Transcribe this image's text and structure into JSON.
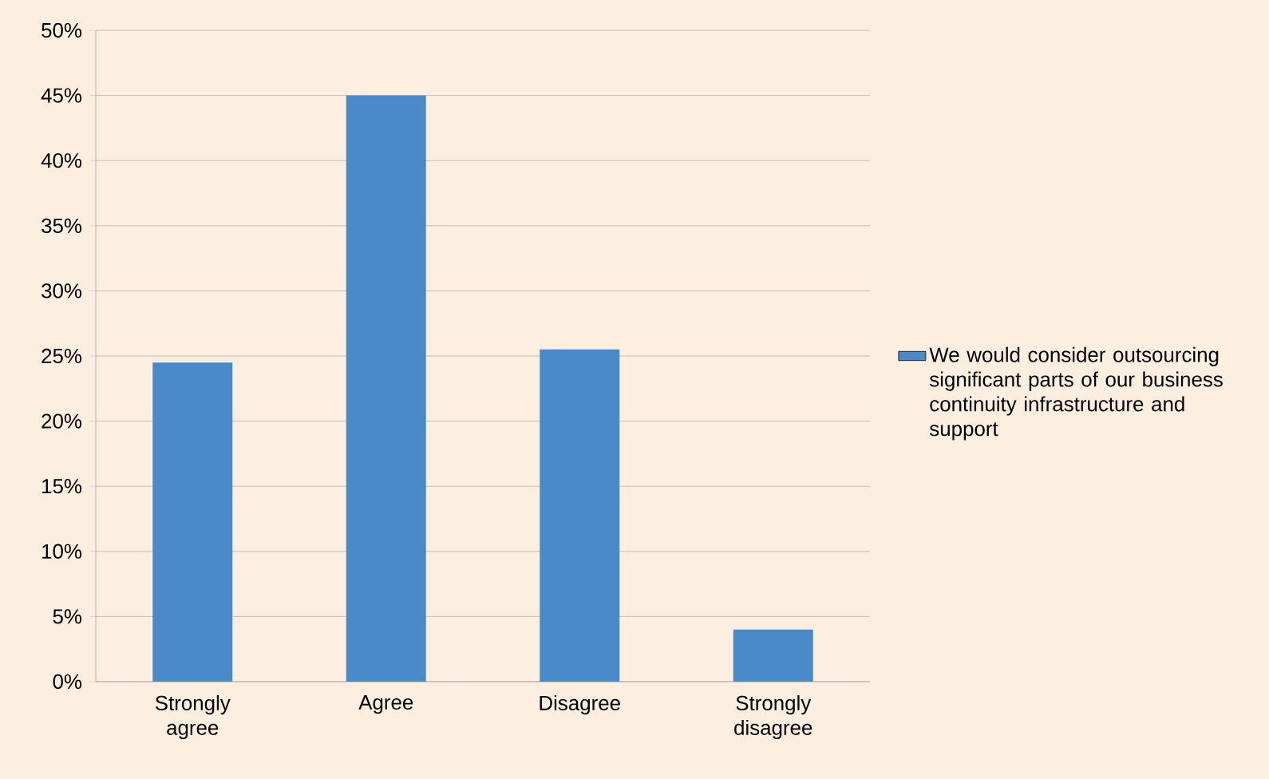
{
  "chart_data": {
    "type": "bar",
    "categories": [
      "Strongly agree",
      "Agree",
      "Disagree",
      "Strongly disagree"
    ],
    "series": [
      {
        "name": "We would consider outsourcing significant parts of our business continuity infrastructure and support",
        "color": "#4a8acb",
        "values": [
          24.5,
          45,
          25.5,
          4
        ]
      }
    ],
    "ylim": [
      0,
      50
    ],
    "yticks": [
      {
        "value": 0,
        "label": "0%"
      },
      {
        "value": 5,
        "label": "5%"
      },
      {
        "value": 10,
        "label": "10%"
      },
      {
        "value": 15,
        "label": "15%"
      },
      {
        "value": 20,
        "label": "20%"
      },
      {
        "value": 25,
        "label": "25%"
      },
      {
        "value": 30,
        "label": "30%"
      },
      {
        "value": 35,
        "label": "35%"
      },
      {
        "value": 40,
        "label": "40%"
      },
      {
        "value": 45,
        "label": "45%"
      },
      {
        "value": 50,
        "label": "50%"
      }
    ],
    "grid": "y",
    "legend": "right"
  }
}
